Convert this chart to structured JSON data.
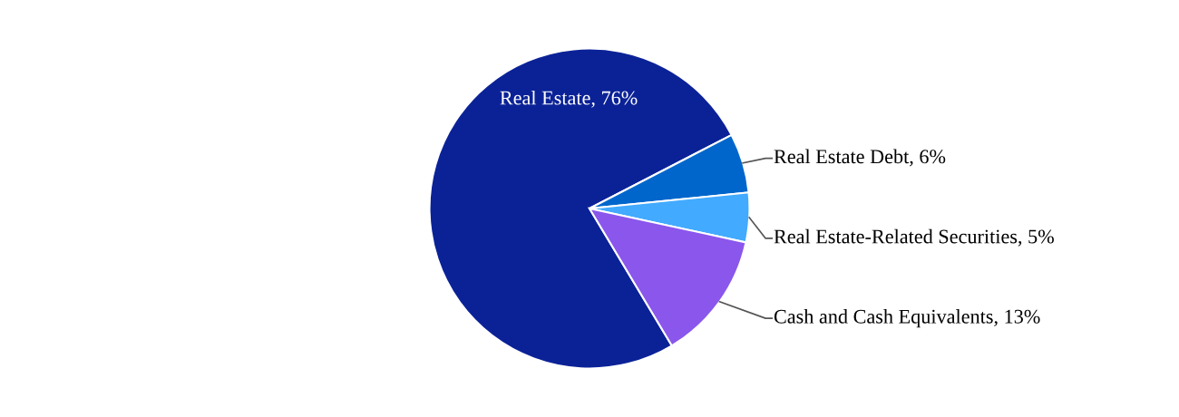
{
  "chart_data": {
    "type": "pie",
    "categories": [
      "Real Estate",
      "Real Estate Debt",
      "Real Estate-Related Securities",
      "Cash and Cash Equivalents"
    ],
    "values": [
      76,
      6,
      5,
      13
    ],
    "value_labels": [
      "76%",
      "6%",
      "5%",
      "13%"
    ],
    "colors": [
      "#0b2297",
      "#0066cc",
      "#42aaff",
      "#8a56ec"
    ],
    "legend": false
  }
}
